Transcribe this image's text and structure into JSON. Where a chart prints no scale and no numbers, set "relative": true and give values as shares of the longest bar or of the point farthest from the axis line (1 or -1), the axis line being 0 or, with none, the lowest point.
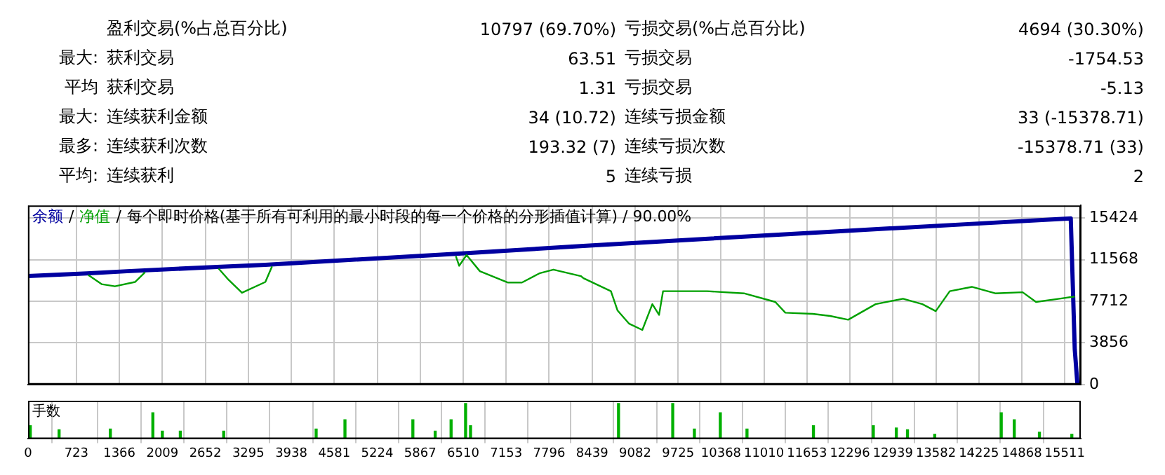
{
  "chart_data": [
    {
      "type": "other",
      "annotations": [
        "盈利交易(%占总百分比)",
        "10797 (69.70%)",
        "亏损交易(%占总百分比)",
        "4694 (30.30%)",
        "最大:",
        "获利交易",
        "63.51",
        "亏损交易",
        "-1754.53",
        "平均",
        "获利交易",
        "1.31",
        "亏损交易",
        "-5.13",
        "最大:",
        "连续获利金额",
        "34 (10.72)",
        "连续亏损金额",
        "33 (-15378.71)",
        "最多:",
        "连续获利次数",
        "193.32 (7)",
        "连续亏损次数",
        "-15378.71 (33)",
        "平均:",
        "连续获利",
        "5",
        "连续亏损",
        "2"
      ]
    },
    {
      "type": "line",
      "annotations": [
        "/",
        "/"
      ],
      "subtitle": "每个即时价格(基于所有可利用的最小时段的每一个价格的分形插值计算) / 90.00%",
      "legend": "top left",
      "grid": true,
      "marker": "none",
      "line_style": "solid",
      "tick_labels": "y",
      "xlim": [
        0,
        15750
      ],
      "xticks": [
        0,
        723,
        1366,
        2009,
        2652,
        3295,
        3938,
        4581,
        5224,
        5867,
        6510,
        7153,
        7796,
        8439,
        9082,
        9725,
        10368,
        11010,
        11653,
        12296,
        12939,
        13582,
        14225,
        14868,
        15511
      ],
      "ylim": [
        0,
        16600
      ],
      "yticks": [
        0,
        3856,
        7712,
        11568,
        15424
      ],
      "series": [
        {
          "name": "余额",
          "color": "#0000a0",
          "x": [
            0,
            880,
            1480,
            2830,
            3550,
            6360,
            8310,
            12110,
            14160,
            15600,
            15660,
            15700
          ],
          "values": [
            10050,
            10300,
            10500,
            10900,
            11100,
            12100,
            12850,
            14200,
            14900,
            15400,
            3250,
            0
          ]
        },
        {
          "name": "净值",
          "color": "#00a000",
          "x": [
            900,
            1100,
            1300,
            1600,
            1750,
            null,
            2850,
            3000,
            3200,
            3550,
            3650,
            null,
            6400,
            6450,
            6560,
            6760,
            7180,
            7390,
            7650,
            7860,
            8270,
            8310,
            8720,
            8820,
            8990,
            9190,
            9340,
            9440,
            9500,
            9690,
            10160,
            10710,
            11180,
            11330,
            11740,
            12000,
            12270,
            12680,
            13090,
            13380,
            13580,
            13790,
            14120,
            14470,
            14880,
            15080,
            15430,
            15660
          ],
          "values": [
            10150,
            9300,
            9100,
            9500,
            10400,
            null,
            10750,
            9700,
            8500,
            9500,
            10950,
            null,
            11900,
            11000,
            12000,
            10500,
            9450,
            9450,
            10300,
            10650,
            10050,
            9850,
            8650,
            6850,
            5650,
            5050,
            7450,
            6450,
            8650,
            8650,
            8650,
            8450,
            7650,
            6650,
            6550,
            6350,
            6000,
            7450,
            7950,
            7450,
            6800,
            8650,
            9050,
            8450,
            8550,
            7650,
            7950,
            8150
          ]
        }
      ]
    },
    {
      "type": "bar",
      "title": "手数",
      "relative": true,
      "color": "#00b000",
      "grid": "x",
      "tick_labels": "x",
      "xlim": [
        0,
        15750
      ],
      "xticks": [
        0,
        723,
        1366,
        2009,
        2652,
        3295,
        3938,
        4581,
        5224,
        5867,
        6510,
        7153,
        7796,
        8439,
        9082,
        9725,
        10368,
        11010,
        11653,
        12296,
        12939,
        13582,
        14225,
        14868,
        15511
      ],
      "x": [
        33,
        464,
        1231,
        1867,
        2009,
        2278,
        2927,
        4310,
        4741,
        5757,
        6091,
        6329,
        6546,
        6620,
        8834,
        9645,
        9969,
        10357,
        10756,
        11750,
        12646,
        12990,
        13157,
        13565,
        14560,
        14755,
        15131,
        15616
      ],
      "values": [
        0.37,
        0.26,
        0.28,
        0.74,
        0.22,
        0.22,
        0.22,
        0.28,
        0.54,
        0.54,
        0.22,
        0.54,
        1,
        0.37,
        1,
        1,
        0.28,
        0.74,
        0.28,
        0.37,
        0.37,
        0.31,
        0.26,
        0.13,
        0.74,
        0.54,
        0.19,
        0.13
      ]
    }
  ]
}
